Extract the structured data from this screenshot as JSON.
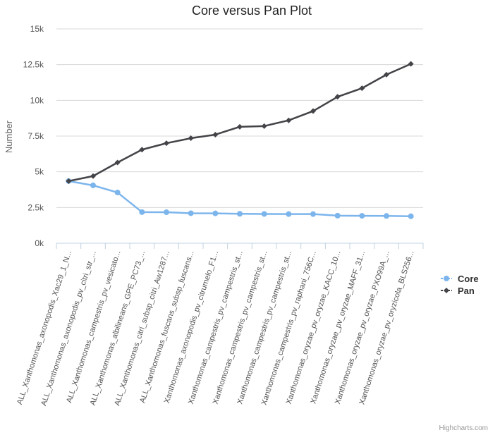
{
  "chart_data": {
    "type": "line",
    "title": "Core versus Pan Plot",
    "ylabel": "Number",
    "xlabel": "",
    "ylim": [
      0,
      15000
    ],
    "y_ticks": [
      {
        "value": 0,
        "label": "0k"
      },
      {
        "value": 2500,
        "label": "2.5k"
      },
      {
        "value": 5000,
        "label": "5k"
      },
      {
        "value": 7500,
        "label": "7.5k"
      },
      {
        "value": 10000,
        "label": "10k"
      },
      {
        "value": 12500,
        "label": "12.5k"
      },
      {
        "value": 15000,
        "label": "15k"
      }
    ],
    "grid": true,
    "legend_position": "right",
    "categories": [
      "ALL_Xanthomonas_axonopodis_Xac29_1_N...",
      "ALL_Xanthomonas_axonopodis_pv_citri_str_...",
      "ALL_Xanthomonas_campestris_pv_vesicato...",
      "ALL_Xanthomonas_albilineans_GPE_PC73_...",
      "ALL_Xanthomonas_citri_subsp_citri_Aw1287...",
      "ALL_Xanthomonas_fuscans_subsp_fuscans...",
      "Xanthomonas_axonopodis_pv_citrumelo_F1...",
      "Xanthomonas_campestris_pv_campestris_st...",
      "Xanthomonas_campestris_pv_campestris_st...",
      "Xanthomonas_campestris_pv_campestris_st...",
      "Xanthomonas_campestris_pv_raphani_756C...",
      "Xanthomonas_oryzae_pv_oryzae_KACC_10...",
      "Xanthomonas_oryzae_pv_oryzae_MAFF_31...",
      "Xanthomonas_oryzae_pv_oryzae_PXO99A_...",
      "Xanthomonas_oryzae_pv_oryzicola_BLS256..."
    ],
    "series": [
      {
        "name": "Core",
        "color": "#7cb5ec",
        "marker": "circle",
        "values": [
          4350,
          4050,
          3550,
          2180,
          2170,
          2100,
          2090,
          2060,
          2050,
          2040,
          2040,
          1930,
          1920,
          1910,
          1890
        ]
      },
      {
        "name": "Pan",
        "color": "#434348",
        "marker": "diamond",
        "values": [
          4350,
          4700,
          5650,
          6550,
          7000,
          7350,
          7600,
          8150,
          8200,
          8600,
          9250,
          10250,
          10850,
          11800,
          12550
        ]
      }
    ],
    "credits": "Highcharts.com"
  }
}
